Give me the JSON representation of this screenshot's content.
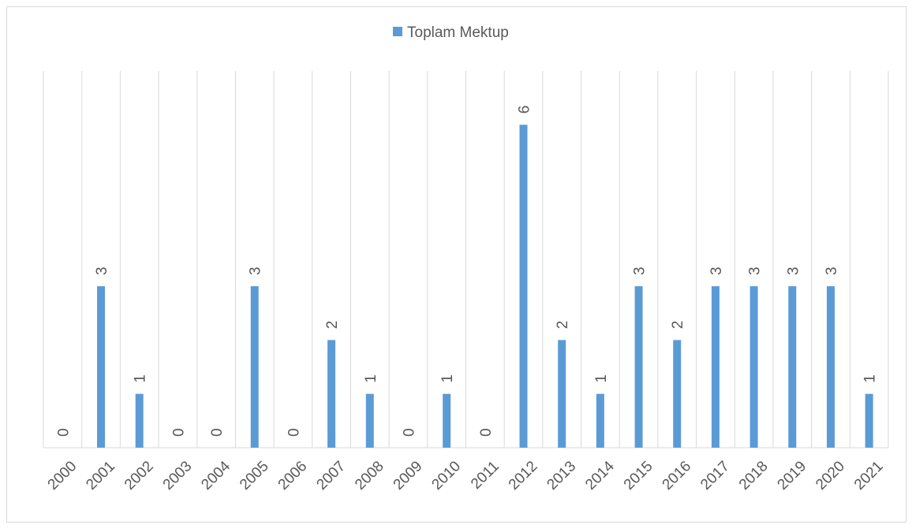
{
  "chart_data": {
    "type": "bar",
    "legend": "Toplam Mektup",
    "color": "#5b9bd5",
    "categories": [
      "2000",
      "2001",
      "2002",
      "2003",
      "2004",
      "2005",
      "2006",
      "2007",
      "2008",
      "2009",
      "2010",
      "2011",
      "2012",
      "2013",
      "2014",
      "2015",
      "2016",
      "2017",
      "2018",
      "2019",
      "2020",
      "2021"
    ],
    "values": [
      0,
      3,
      1,
      0,
      0,
      3,
      0,
      2,
      1,
      0,
      1,
      0,
      6,
      2,
      1,
      3,
      2,
      3,
      3,
      3,
      3,
      1
    ],
    "ylim": [
      0,
      7
    ]
  }
}
